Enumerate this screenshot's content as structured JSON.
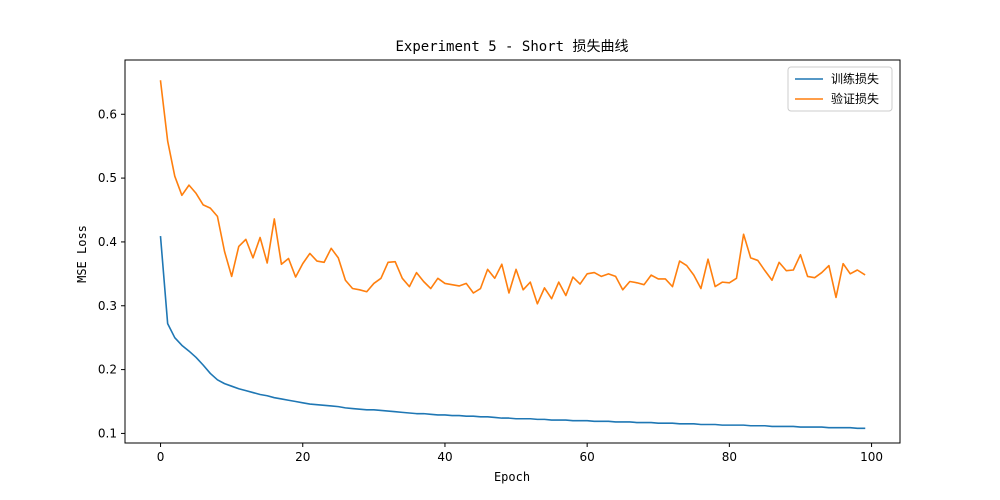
{
  "chart_data": {
    "type": "line",
    "title": "Experiment 5 - Short 损失曲线",
    "xlabel": "Epoch",
    "ylabel": "MSE Loss",
    "xlim": [
      -5,
      104
    ],
    "ylim": [
      0.085,
      0.685
    ],
    "xticks": [
      0,
      20,
      40,
      60,
      80,
      100
    ],
    "yticks": [
      0.1,
      0.2,
      0.3,
      0.4,
      0.5,
      0.6
    ],
    "grid": false,
    "legend_position": "top-right",
    "series": [
      {
        "name": "训练损失",
        "color": "#1f77b4",
        "x": [
          0,
          1,
          2,
          3,
          4,
          5,
          6,
          7,
          8,
          9,
          10,
          11,
          12,
          13,
          14,
          15,
          16,
          17,
          18,
          19,
          20,
          21,
          22,
          23,
          24,
          25,
          26,
          27,
          28,
          29,
          30,
          31,
          32,
          33,
          34,
          35,
          36,
          37,
          38,
          39,
          40,
          41,
          42,
          43,
          44,
          45,
          46,
          47,
          48,
          49,
          50,
          51,
          52,
          53,
          54,
          55,
          56,
          57,
          58,
          59,
          60,
          61,
          62,
          63,
          64,
          65,
          66,
          67,
          68,
          69,
          70,
          71,
          72,
          73,
          74,
          75,
          76,
          77,
          78,
          79,
          80,
          81,
          82,
          83,
          84,
          85,
          86,
          87,
          88,
          89,
          90,
          91,
          92,
          93,
          94,
          95,
          96,
          97,
          98,
          99
        ],
        "values": [
          0.408,
          0.272,
          0.25,
          0.238,
          0.229,
          0.219,
          0.207,
          0.194,
          0.184,
          0.178,
          0.174,
          0.17,
          0.167,
          0.164,
          0.161,
          0.159,
          0.156,
          0.154,
          0.152,
          0.15,
          0.148,
          0.146,
          0.145,
          0.144,
          0.143,
          0.142,
          0.14,
          0.139,
          0.138,
          0.137,
          0.137,
          0.136,
          0.135,
          0.134,
          0.133,
          0.132,
          0.131,
          0.131,
          0.13,
          0.129,
          0.129,
          0.128,
          0.128,
          0.127,
          0.127,
          0.126,
          0.126,
          0.125,
          0.124,
          0.124,
          0.123,
          0.123,
          0.123,
          0.122,
          0.122,
          0.121,
          0.121,
          0.121,
          0.12,
          0.12,
          0.12,
          0.119,
          0.119,
          0.119,
          0.118,
          0.118,
          0.118,
          0.117,
          0.117,
          0.117,
          0.116,
          0.116,
          0.116,
          0.115,
          0.115,
          0.115,
          0.114,
          0.114,
          0.114,
          0.113,
          0.113,
          0.113,
          0.113,
          0.112,
          0.112,
          0.112,
          0.111,
          0.111,
          0.111,
          0.111,
          0.11,
          0.11,
          0.11,
          0.11,
          0.109,
          0.109,
          0.109,
          0.109,
          0.108,
          0.108
        ]
      },
      {
        "name": "验证损失",
        "color": "#ff7f0e",
        "x": [
          0,
          1,
          2,
          3,
          4,
          5,
          6,
          7,
          8,
          9,
          10,
          11,
          12,
          13,
          14,
          15,
          16,
          17,
          18,
          19,
          20,
          21,
          22,
          23,
          24,
          25,
          26,
          27,
          28,
          29,
          30,
          31,
          32,
          33,
          34,
          35,
          36,
          37,
          38,
          39,
          40,
          41,
          42,
          43,
          44,
          45,
          46,
          47,
          48,
          49,
          50,
          51,
          52,
          53,
          54,
          55,
          56,
          57,
          58,
          59,
          60,
          61,
          62,
          63,
          64,
          65,
          66,
          67,
          68,
          69,
          70,
          71,
          72,
          73,
          74,
          75,
          76,
          77,
          78,
          79,
          80,
          81,
          82,
          83,
          84,
          85,
          86,
          87,
          88,
          89,
          90,
          91,
          92,
          93,
          94,
          95,
          96,
          97,
          98,
          99
        ],
        "values": [
          0.652,
          0.558,
          0.503,
          0.473,
          0.489,
          0.476,
          0.458,
          0.453,
          0.44,
          0.385,
          0.346,
          0.393,
          0.404,
          0.375,
          0.407,
          0.367,
          0.436,
          0.365,
          0.374,
          0.345,
          0.366,
          0.382,
          0.37,
          0.368,
          0.39,
          0.375,
          0.34,
          0.327,
          0.325,
          0.322,
          0.335,
          0.343,
          0.368,
          0.369,
          0.343,
          0.33,
          0.352,
          0.338,
          0.327,
          0.343,
          0.335,
          0.333,
          0.331,
          0.335,
          0.32,
          0.327,
          0.357,
          0.343,
          0.365,
          0.32,
          0.357,
          0.325,
          0.337,
          0.303,
          0.328,
          0.311,
          0.337,
          0.316,
          0.345,
          0.334,
          0.35,
          0.352,
          0.346,
          0.35,
          0.346,
          0.325,
          0.338,
          0.336,
          0.333,
          0.348,
          0.342,
          0.342,
          0.33,
          0.37,
          0.363,
          0.348,
          0.327,
          0.373,
          0.33,
          0.337,
          0.336,
          0.343,
          0.412,
          0.375,
          0.371,
          0.355,
          0.34,
          0.368,
          0.355,
          0.356,
          0.38,
          0.346,
          0.344,
          0.352,
          0.363,
          0.313,
          0.366,
          0.35,
          0.356,
          0.349
        ]
      }
    ]
  }
}
